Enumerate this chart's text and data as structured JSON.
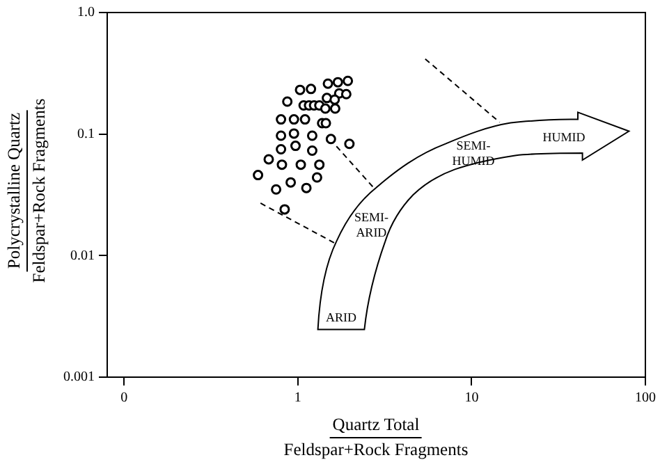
{
  "chart_data": {
    "type": "scatter",
    "xlabel": "Quartz Total\nFeldspar+Rock Fragments",
    "ylabel": "Polycrystalline Quartz\nFeldspar+Rock Fragments",
    "log": "xy",
    "xlim": [
      0.08,
      100
    ],
    "xticks": [
      {
        "value": 0.1,
        "label": "0"
      },
      1,
      10,
      100
    ],
    "ylim": [
      0.001,
      1
    ],
    "yticks": [
      0.001,
      0.01,
      0.1,
      {
        "value": 1,
        "label": "1.0"
      }
    ],
    "grid": false,
    "legend": false,
    "series": [
      {
        "type": "scatter",
        "color": "#000000",
        "marker": "circle",
        "x": [
          1.03,
          1.19,
          1.49,
          1.7,
          1.94,
          1.73,
          1.9,
          1.47,
          1.63,
          0.87,
          1.08,
          1.16,
          1.24,
          1.33,
          1.44,
          1.64,
          0.8,
          0.95,
          1.1,
          1.38,
          1.45,
          0.8,
          0.95,
          1.21,
          1.55,
          1.98,
          0.8,
          0.97,
          1.21,
          0.68,
          0.81,
          1.04,
          1.33,
          0.59,
          0.91,
          1.29,
          0.75,
          1.12,
          0.84
        ],
        "values": [
          0.231,
          0.235,
          0.26,
          0.267,
          0.274,
          0.216,
          0.213,
          0.198,
          0.192,
          0.185,
          0.172,
          0.172,
          0.172,
          0.172,
          0.162,
          0.162,
          0.132,
          0.132,
          0.132,
          0.123,
          0.123,
          0.097,
          0.101,
          0.097,
          0.091,
          0.083,
          0.075,
          0.08,
          0.073,
          0.062,
          0.056,
          0.056,
          0.056,
          0.046,
          0.04,
          0.044,
          0.035,
          0.036,
          0.024
        ]
      },
      {
        "type": "line",
        "color": "#000000",
        "marker": "none",
        "line_style": "dashed",
        "x": [
          0.61,
          1.66
        ],
        "values": [
          0.027,
          0.0125
        ]
      },
      {
        "type": "line",
        "color": "#000000",
        "marker": "none",
        "line_style": "dashed",
        "x": [
          1.53,
          2.74
        ],
        "values": [
          0.091,
          0.036
        ]
      },
      {
        "type": "line",
        "color": "#000000",
        "marker": "none",
        "line_style": "dashed",
        "x": [
          5.41,
          14.5
        ],
        "values": [
          0.415,
          0.125
        ]
      }
    ],
    "annotations": [
      "ARID",
      "SEMI-\nARID",
      "SEMI-\nHUMID",
      "HUMID"
    ]
  }
}
